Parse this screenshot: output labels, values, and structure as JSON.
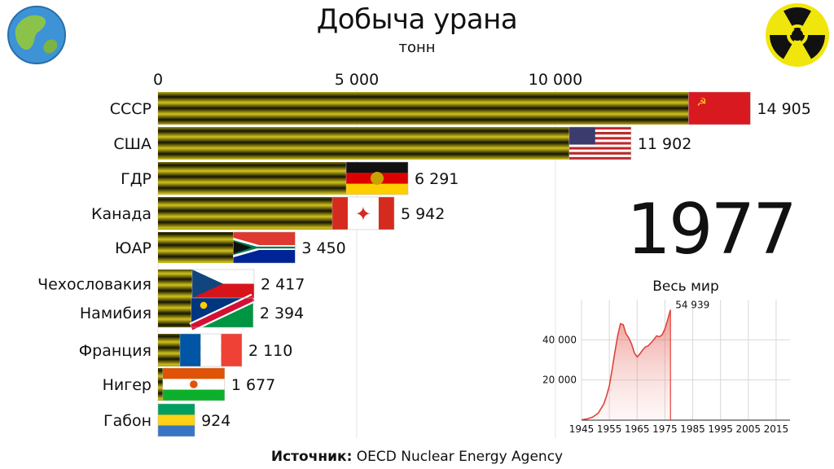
{
  "title": "Добыча урана",
  "subtitle": "тонн",
  "year": "1977",
  "source": {
    "label": "Источник:",
    "text": "OECD Nuclear Energy Agency"
  },
  "icons": {
    "left": "globe-icon",
    "right": "radiation-icon"
  },
  "colors": {
    "bar_stripe_dark": "#141400",
    "bar_stripe_light": "#d2c21a",
    "world_line": "#e0423a",
    "world_fill": "#f2b4b0"
  },
  "chart_data": [
    {
      "type": "bar",
      "orientation": "horizontal",
      "title": "Добыча урана",
      "subtitle": "тонн",
      "xlim": [
        0,
        15000
      ],
      "x_ticks": [
        0,
        5000,
        10000
      ],
      "x_tick_labels": [
        "0",
        "5 000",
        "10 000"
      ],
      "grid": true,
      "categories": [
        "СССР",
        "США",
        "ГДР",
        "Канада",
        "ЮАР",
        "Чехословакия",
        "Намибия",
        "Франция",
        "Нигер",
        "Габон"
      ],
      "values": [
        14905,
        11902,
        6291,
        5942,
        3450,
        2417,
        2394,
        2110,
        1677,
        924
      ],
      "value_labels": [
        "14 905",
        "11 902",
        "6 291",
        "5 942",
        "3 450",
        "2 417",
        "2 394",
        "2 110",
        "1 677",
        "924"
      ],
      "flags": [
        "ussr",
        "usa",
        "gdr",
        "canada",
        "south-africa",
        "czechoslovakia",
        "namibia",
        "france",
        "niger",
        "gabon"
      ]
    },
    {
      "type": "area",
      "title": "Весь мир",
      "xlim": [
        1945,
        2020
      ],
      "ylim": [
        0,
        60000
      ],
      "x_ticks": [
        1945,
        1955,
        1965,
        1975,
        1985,
        1995,
        2005,
        2015
      ],
      "x_tick_labels": [
        "1945",
        "1955",
        "1965",
        "1975",
        "1985",
        "1995",
        "2005",
        "2015"
      ],
      "y_ticks": [
        20000,
        40000
      ],
      "y_tick_labels": [
        "20 000",
        "40 000"
      ],
      "grid": true,
      "x": [
        1945,
        1947,
        1949,
        1951,
        1953,
        1954,
        1955,
        1956,
        1957,
        1958,
        1959,
        1960,
        1961,
        1962,
        1963,
        1964,
        1965,
        1966,
        1967,
        1968,
        1969,
        1970,
        1971,
        1972,
        1973,
        1974,
        1975,
        1976,
        1977
      ],
      "y": [
        200,
        600,
        1500,
        3500,
        8000,
        12000,
        17000,
        25000,
        34000,
        42000,
        48000,
        47500,
        43000,
        41000,
        38000,
        33500,
        31500,
        33000,
        35000,
        36500,
        37000,
        38500,
        40000,
        42000,
        41500,
        42500,
        45500,
        50000,
        54939
      ],
      "end_label": "54 939"
    }
  ]
}
